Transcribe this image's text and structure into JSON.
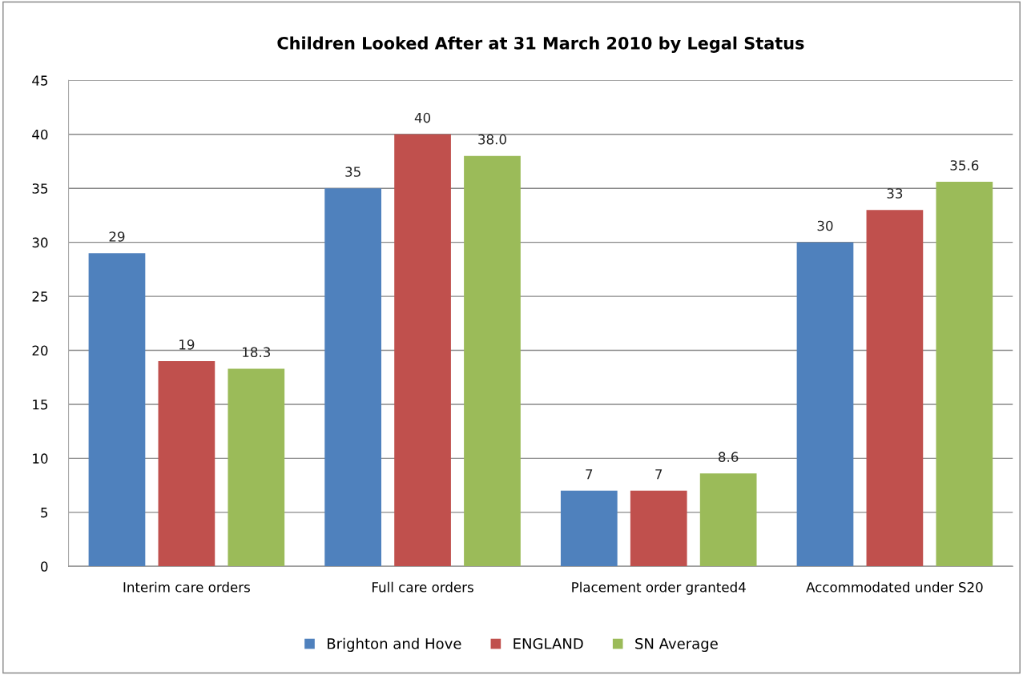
{
  "chart_data": {
    "type": "bar",
    "title": "Children Looked After at 31 March 2010 by Legal Status",
    "categories": [
      "Interim care orders",
      "Full care orders",
      "Placement order granted4",
      "Accommodated under S20"
    ],
    "series": [
      {
        "name": "Brighton and Hove",
        "color": "#4f81bd",
        "values": [
          29,
          35,
          7,
          30
        ],
        "value_labels": [
          "29",
          "35",
          "7",
          "30"
        ]
      },
      {
        "name": "ENGLAND",
        "color": "#c0504d",
        "values": [
          19,
          40,
          7,
          33
        ],
        "value_labels": [
          "19",
          "40",
          "7",
          "33"
        ]
      },
      {
        "name": "SN Average",
        "color": "#9bbb59",
        "values": [
          18.3,
          38.0,
          8.6,
          35.6
        ],
        "value_labels": [
          "18.3",
          "38.0",
          "8.6",
          "35.6"
        ]
      }
    ],
    "ylim": [
      0,
      45
    ],
    "yticks": [
      0,
      5,
      10,
      15,
      20,
      25,
      30,
      35,
      40,
      45
    ],
    "grid": "y",
    "legend": "bottom"
  }
}
